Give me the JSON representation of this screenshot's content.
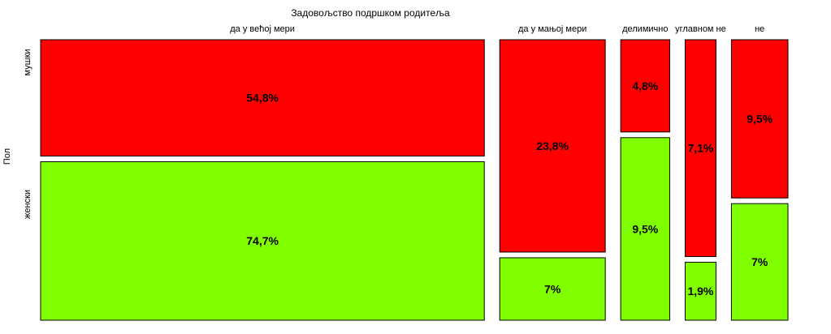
{
  "chart_data": {
    "type": "mosaic",
    "title": "Задовољство подршком родитеља",
    "ylabel": "Пол",
    "categories": [
      "да у већој мери",
      "да у мањој мери",
      "делимично",
      "углавном не",
      "не"
    ],
    "groups": [
      "мушки",
      "женски"
    ],
    "series": [
      {
        "name": "мушки",
        "values": [
          54.8,
          23.8,
          4.8,
          7.1,
          9.5
        ],
        "labels": [
          "54,8%",
          "23,8%",
          "4,8%",
          "7,1%",
          "9,5%"
        ]
      },
      {
        "name": "женски",
        "values": [
          74.7,
          7,
          9.5,
          1.9,
          7
        ],
        "labels": [
          "74,7%",
          "7%",
          "9,5%",
          "1,9%",
          "7%"
        ]
      }
    ],
    "colors": {
      "мушки": "#ff0000",
      "женски": "#7fff00"
    }
  }
}
